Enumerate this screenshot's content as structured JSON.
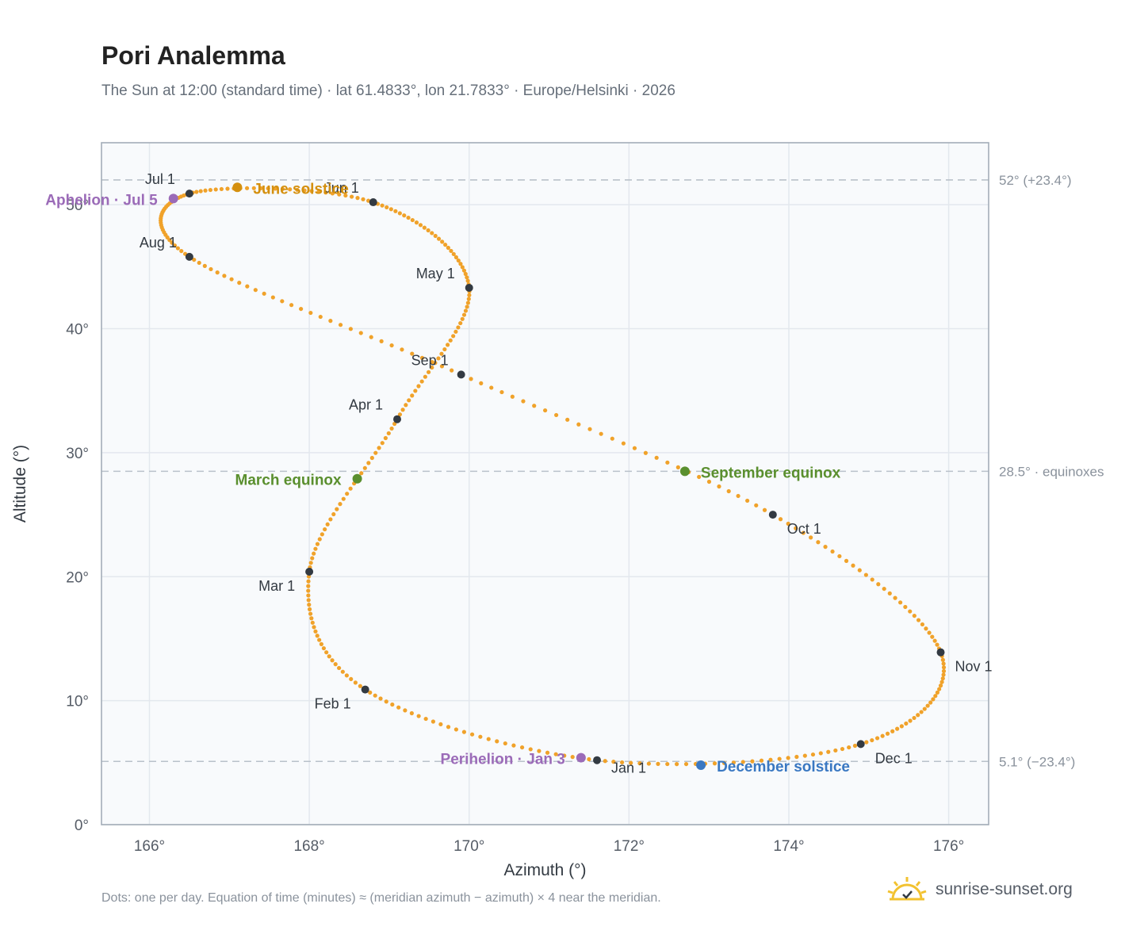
{
  "header": {
    "title": "Pori Analemma",
    "subtitle": "The Sun at 12:00 (standard time) · lat 61.4833°, lon 21.7833° · Europe/Helsinki · 2026"
  },
  "footer": {
    "note": "Dots: one per day. Equation of time (minutes) ≈ (meridian azimuth − azimuth) × 4 near the meridian.",
    "brand": "sunrise-sunset.org"
  },
  "chart_data": {
    "type": "scatter",
    "xlabel": "Azimuth (°)",
    "ylabel": "Altitude (°)",
    "xlim": [
      165.4,
      176.5
    ],
    "ylim": [
      0,
      55
    ],
    "xticks": [
      166,
      168,
      170,
      172,
      174,
      176
    ],
    "yticks": [
      0,
      10,
      20,
      30,
      40,
      50
    ],
    "tick_suffix": "°",
    "grid": true,
    "colors": {
      "path": "#f0a22a",
      "month_marker": "#333a42",
      "june_solstice": "#d4900f",
      "december_solstice": "#3a78c2",
      "equinox": "#5a8f2e",
      "apsis": "#9b6bb8",
      "reference_line": "#b9c1ca",
      "plot_background": "#f8fafc",
      "grid": "#e3e8ee"
    },
    "monthly_points": [
      {
        "label": "Jan 1",
        "x": 171.6,
        "y": 5.2
      },
      {
        "label": "Feb 1",
        "x": 168.7,
        "y": 10.9
      },
      {
        "label": "Mar 1",
        "x": 168.0,
        "y": 20.4
      },
      {
        "label": "Apr 1",
        "x": 169.1,
        "y": 32.7
      },
      {
        "label": "May 1",
        "x": 170.0,
        "y": 43.3
      },
      {
        "label": "Jun 1",
        "x": 168.8,
        "y": 50.2
      },
      {
        "label": "Jul 1",
        "x": 166.5,
        "y": 50.9
      },
      {
        "label": "Aug 1",
        "x": 166.5,
        "y": 45.8
      },
      {
        "label": "Sep 1",
        "x": 169.9,
        "y": 36.3
      },
      {
        "label": "Oct 1",
        "x": 173.8,
        "y": 25.0
      },
      {
        "label": "Nov 1",
        "x": 175.9,
        "y": 13.9
      },
      {
        "label": "Dec 1",
        "x": 174.9,
        "y": 6.5
      }
    ],
    "events": [
      {
        "label": "June solstice",
        "x": 167.1,
        "y": 51.4,
        "color": "#d4900f"
      },
      {
        "label": "December solstice",
        "x": 172.9,
        "y": 4.8,
        "color": "#3a78c2"
      },
      {
        "label": "March equinox",
        "x": 168.6,
        "y": 27.9,
        "color": "#5a8f2e"
      },
      {
        "label": "September equinox",
        "x": 172.7,
        "y": 28.5,
        "color": "#5a8f2e"
      },
      {
        "label": "Aphelion · Jul 5",
        "x": 166.3,
        "y": 50.5,
        "color": "#9b6bb8"
      },
      {
        "label": "Perihelion · Jan 3",
        "x": 171.4,
        "y": 5.4,
        "color": "#9b6bb8"
      }
    ],
    "reference_lines": [
      {
        "y": 52.0,
        "label": "52° (+23.4°)"
      },
      {
        "y": 28.5,
        "label": "28.5° · equinoxes"
      },
      {
        "y": 5.1,
        "label": "5.1° (−23.4°)"
      }
    ]
  }
}
